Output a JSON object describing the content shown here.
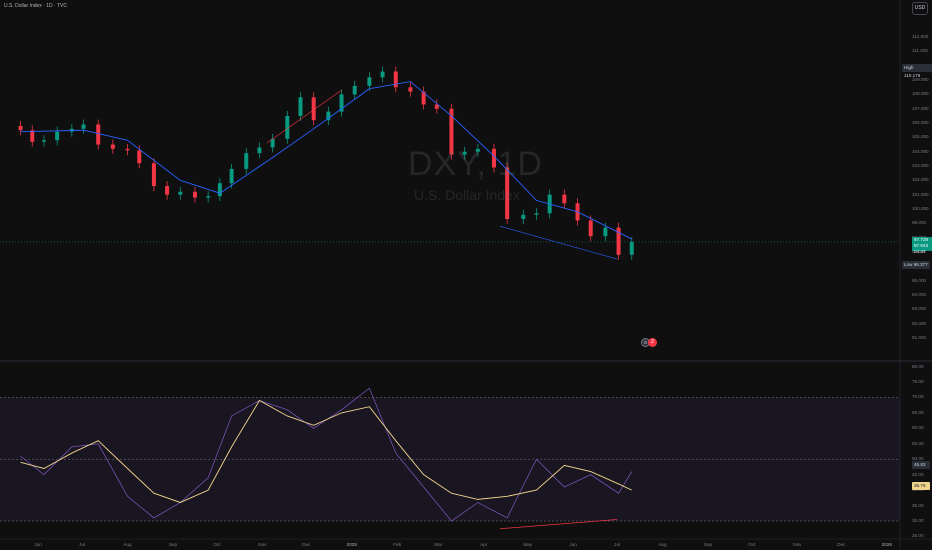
{
  "header": {
    "title": "U.S. Dollar Index · 1D · TVC"
  },
  "toolbar": {
    "currency": "USD"
  },
  "watermark": {
    "ticker": "DXY, 1D",
    "name": "U.S. Dollar Index"
  },
  "price_axis": {
    "labels": [
      "112.000",
      "111.000",
      "110.000",
      "109.000",
      "108.000",
      "107.000",
      "106.000",
      "105.000",
      "104.000",
      "103.000",
      "102.000",
      "101.000",
      "100.000",
      "99.000",
      "98.000",
      "97.000",
      "96.000",
      "95.000",
      "94.000",
      "93.000",
      "92.000",
      "91.000"
    ],
    "high": {
      "label": "High",
      "value": "110.176"
    },
    "low": {
      "label": "Low",
      "value": "96.377"
    },
    "current": {
      "value": "97.728",
      "sub1": "97.643",
      "sub2": "04:47"
    }
  },
  "rsi_axis": {
    "labels": [
      "80.00",
      "75.00",
      "70.00",
      "65.00",
      "60.00",
      "55.00",
      "50.00",
      "45.00",
      "40.00",
      "35.00",
      "30.00",
      "25.00"
    ],
    "current": [
      "45.82",
      "36.76"
    ]
  },
  "time_axis": {
    "labels": [
      "Jun",
      "Jul",
      "Aug",
      "Sep",
      "Oct",
      "Nov",
      "Dec",
      "2025",
      "Feb",
      "Mar",
      "Apr",
      "May",
      "Jun",
      "Jul",
      "Aug",
      "Sep",
      "Oct",
      "Nov",
      "Dec",
      "2026"
    ]
  },
  "events": {
    "badge": "2"
  },
  "colors": {
    "up": "#089981",
    "down": "#f23645",
    "ma": "#2962ff",
    "rsi": "#7e57c2",
    "rsi_ma": "#f0d58c",
    "trendline": "#2962ff",
    "divergence": "#f23645"
  },
  "chart_data": [
    {
      "type": "candlestick",
      "title": "U.S. Dollar Index · 1D · TVC",
      "ylim": [
        90.5,
        113.2
      ],
      "series": [
        {
          "name": "close",
          "x": [
            "2024-05-20",
            "2024-05-28",
            "2024-06-05",
            "2024-06-14",
            "2024-06-24",
            "2024-07-02",
            "2024-07-12",
            "2024-07-22",
            "2024-08-01",
            "2024-08-09",
            "2024-08-19",
            "2024-08-28",
            "2024-09-06",
            "2024-09-16",
            "2024-09-25",
            "2024-10-03",
            "2024-10-11",
            "2024-10-21",
            "2024-10-30",
            "2024-11-08",
            "2024-11-18",
            "2024-11-27",
            "2024-12-06",
            "2024-12-16",
            "2024-12-25",
            "2025-01-03",
            "2025-01-13",
            "2025-01-22",
            "2025-01-31",
            "2025-02-10",
            "2025-02-19",
            "2025-02-28",
            "2025-03-10",
            "2025-03-19",
            "2025-03-28",
            "2025-04-08",
            "2025-04-17",
            "2025-04-28",
            "2025-05-07",
            "2025-05-16",
            "2025-05-26",
            "2025-06-04",
            "2025-06-13",
            "2025-06-23",
            "2025-07-02",
            "2025-07-11"
          ],
          "values": [
            105.5,
            104.7,
            104.8,
            105.4,
            105.6,
            105.9,
            104.5,
            104.2,
            104.1,
            103.2,
            101.6,
            101.0,
            101.2,
            100.8,
            100.9,
            101.8,
            102.8,
            103.9,
            104.3,
            104.9,
            106.5,
            107.8,
            106.2,
            106.8,
            108.0,
            108.6,
            109.2,
            109.6,
            108.5,
            108.2,
            107.3,
            107.0,
            103.8,
            104.0,
            104.2,
            102.9,
            99.3,
            99.6,
            99.7,
            101.0,
            100.4,
            99.2,
            98.1,
            98.7,
            96.8,
            97.7
          ]
        },
        {
          "name": "moving average",
          "x": [
            "2024-05-20",
            "2024-07-02",
            "2024-08-01",
            "2024-09-06",
            "2024-10-03",
            "2024-11-08",
            "2024-12-06",
            "2025-01-13",
            "2025-02-10",
            "2025-03-10",
            "2025-04-08",
            "2025-05-07",
            "2025-06-04",
            "2025-07-11"
          ],
          "values": [
            105.4,
            105.5,
            104.8,
            102.0,
            101.1,
            103.6,
            105.6,
            108.4,
            108.9,
            106.5,
            103.7,
            100.6,
            99.8,
            97.9
          ]
        }
      ]
    },
    {
      "type": "line",
      "title": "RSI",
      "ylim": [
        24.5,
        80.5
      ],
      "series": [
        {
          "name": "RSI",
          "x": [
            "2024-05-20",
            "2024-06-05",
            "2024-06-24",
            "2024-07-12",
            "2024-08-01",
            "2024-08-19",
            "2024-09-06",
            "2024-09-25",
            "2024-10-11",
            "2024-10-30",
            "2024-11-18",
            "2024-12-06",
            "2024-12-25",
            "2025-01-13",
            "2025-01-31",
            "2025-02-19",
            "2025-03-10",
            "2025-03-28",
            "2025-04-17",
            "2025-05-07",
            "2025-05-26",
            "2025-06-13",
            "2025-07-02",
            "2025-07-11"
          ],
          "values": [
            51,
            45,
            54,
            55,
            38,
            31,
            36,
            44,
            64,
            69,
            66,
            60,
            66,
            73,
            52,
            41,
            30,
            36,
            31,
            50,
            41,
            45,
            39,
            46
          ]
        },
        {
          "name": "RSI-based MA",
          "x": [
            "2024-05-20",
            "2024-06-05",
            "2024-06-24",
            "2024-07-12",
            "2024-08-01",
            "2024-08-19",
            "2024-09-06",
            "2024-09-25",
            "2024-10-11",
            "2024-10-30",
            "2024-11-18",
            "2024-12-06",
            "2024-12-25",
            "2025-01-13",
            "2025-01-31",
            "2025-02-19",
            "2025-03-10",
            "2025-03-28",
            "2025-04-17",
            "2025-05-07",
            "2025-05-26",
            "2025-06-13",
            "2025-07-02",
            "2025-07-11"
          ],
          "values": [
            49,
            47,
            52,
            56,
            47,
            39,
            36,
            40,
            54,
            69,
            64,
            61,
            65,
            67,
            56,
            45,
            39,
            37,
            38,
            40,
            48,
            46,
            42,
            40
          ]
        }
      ]
    }
  ]
}
